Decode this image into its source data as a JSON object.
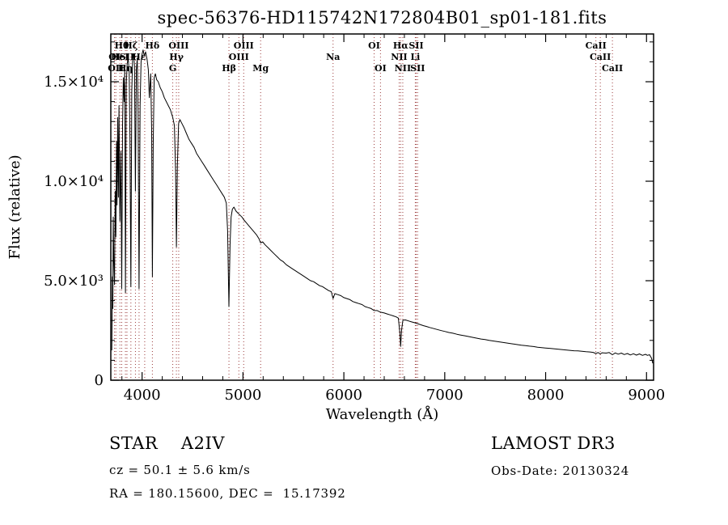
{
  "title": "spec-56376-HD115742N172804B01_sp01-181.fits",
  "footer": {
    "class_label": "STAR    A2IV",
    "cz": "cz = 50.1 ± 5.6 km/s",
    "ra_dec": "RA = 180.15600, DEC =  15.17392",
    "survey": "LAMOST DR3",
    "obs_date": "Obs-Date: 20130324"
  },
  "chart_data": {
    "type": "line",
    "title": "spec-56376-HD115742N172804B01_sp01-181.fits",
    "xlabel": "Wavelength (Å)",
    "ylabel": "Flux (relative)",
    "xlim": [
      3690,
      9070
    ],
    "ylim": [
      0,
      17400
    ],
    "xticks": [
      4000,
      5000,
      6000,
      7000,
      8000,
      9000
    ],
    "xtick_minor_step": 200,
    "yticks": [
      {
        "value": 0,
        "label": "0"
      },
      {
        "value": 5000,
        "label": "5.0×10³"
      },
      {
        "value": 10000,
        "label": "1.0×10⁴"
      },
      {
        "value": 15000,
        "label": "1.5×10⁴"
      }
    ],
    "ytick_minor_step": 1000,
    "grid": false,
    "legend": "none",
    "line_color": "#000000",
    "marker_color": "#9b3a3a",
    "spectral_lines": [
      {
        "wl": 3727,
        "label": "OI",
        "row": 2
      },
      {
        "wl": 3740,
        "label": "OII",
        "row": 3
      },
      {
        "wl": 3780,
        "label": "HeI",
        "row": 2
      },
      {
        "wl": 3798,
        "label": "Hθ",
        "row": 1
      },
      {
        "wl": 3835,
        "label": "Hη",
        "row": 3
      },
      {
        "wl": 3850,
        "label": "SII",
        "row": 2
      },
      {
        "wl": 3889,
        "label": "Hζ",
        "row": 1
      },
      {
        "wl": 3934,
        "label": "",
        "row": 1
      },
      {
        "wl": 3970,
        "label": "Hε",
        "row": 2
      },
      {
        "wl": 4026,
        "label": "",
        "row": 2
      },
      {
        "wl": 4102,
        "label": "Hδ",
        "row": 1
      },
      {
        "wl": 4304,
        "label": "G",
        "row": 3
      },
      {
        "wl": 4340,
        "label": "Hγ",
        "row": 2
      },
      {
        "wl": 4363,
        "label": "OIII",
        "row": 1
      },
      {
        "wl": 4861,
        "label": "Hβ",
        "row": 3
      },
      {
        "wl": 4959,
        "label": "OIII",
        "row": 2
      },
      {
        "wl": 5007,
        "label": "OIII",
        "row": 1
      },
      {
        "wl": 5175,
        "label": "Mg",
        "row": 3
      },
      {
        "wl": 5893,
        "label": "Na",
        "row": 2
      },
      {
        "wl": 6300,
        "label": "OI",
        "row": 1
      },
      {
        "wl": 6363,
        "label": "OI",
        "row": 3
      },
      {
        "wl": 6548,
        "label": "NII",
        "row": 2
      },
      {
        "wl": 6563,
        "label": "Hα",
        "row": 1
      },
      {
        "wl": 6584,
        "label": "NII",
        "row": 3
      },
      {
        "wl": 6708,
        "label": "Li",
        "row": 2
      },
      {
        "wl": 6717,
        "label": "SII",
        "row": 1
      },
      {
        "wl": 6731,
        "label": "SII",
        "row": 3
      },
      {
        "wl": 8498,
        "label": "CaII",
        "row": 1
      },
      {
        "wl": 8542,
        "label": "CaII",
        "row": 2
      },
      {
        "wl": 8662,
        "label": "CaII",
        "row": 3
      }
    ],
    "spectrum": [
      [
        3700,
        1500
      ],
      [
        3706,
        5200
      ],
      [
        3710,
        3600
      ],
      [
        3714,
        8200
      ],
      [
        3720,
        6000
      ],
      [
        3727,
        4800
      ],
      [
        3733,
        9500
      ],
      [
        3740,
        7200
      ],
      [
        3747,
        12000
      ],
      [
        3752,
        8800
      ],
      [
        3758,
        13200
      ],
      [
        3765,
        9200
      ],
      [
        3771,
        13800
      ],
      [
        3780,
        8000
      ],
      [
        3790,
        11500
      ],
      [
        3798,
        4600
      ],
      [
        3806,
        12800
      ],
      [
        3814,
        15200
      ],
      [
        3822,
        14000
      ],
      [
        3828,
        15600
      ],
      [
        3835,
        4400
      ],
      [
        3843,
        14800
      ],
      [
        3852,
        15900
      ],
      [
        3862,
        16200
      ],
      [
        3872,
        15500
      ],
      [
        3880,
        12000
      ],
      [
        3889,
        4700
      ],
      [
        3898,
        14500
      ],
      [
        3906,
        16100
      ],
      [
        3916,
        16400
      ],
      [
        3925,
        15800
      ],
      [
        3934,
        9500
      ],
      [
        3943,
        15600
      ],
      [
        3952,
        16200
      ],
      [
        3960,
        13500
      ],
      [
        3970,
        4600
      ],
      [
        3980,
        13800
      ],
      [
        3990,
        16000
      ],
      [
        4000,
        16400
      ],
      [
        4010,
        16600
      ],
      [
        4022,
        16300
      ],
      [
        4035,
        16500
      ],
      [
        4050,
        16100
      ],
      [
        4062,
        15600
      ],
      [
        4072,
        14200
      ],
      [
        4085,
        15400
      ],
      [
        4095,
        12500
      ],
      [
        4102,
        5200
      ],
      [
        4110,
        11800
      ],
      [
        4120,
        15200
      ],
      [
        4132,
        15400
      ],
      [
        4145,
        15100
      ],
      [
        4160,
        15000
      ],
      [
        4180,
        14700
      ],
      [
        4200,
        14500
      ],
      [
        4220,
        14200
      ],
      [
        4240,
        14000
      ],
      [
        4260,
        13800
      ],
      [
        4280,
        13600
      ],
      [
        4304,
        13200
      ],
      [
        4320,
        12800
      ],
      [
        4332,
        10500
      ],
      [
        4340,
        6700
      ],
      [
        4350,
        10800
      ],
      [
        4362,
        12900
      ],
      [
        4375,
        13100
      ],
      [
        4395,
        12900
      ],
      [
        4415,
        12700
      ],
      [
        4440,
        12400
      ],
      [
        4465,
        12100
      ],
      [
        4490,
        11900
      ],
      [
        4515,
        11700
      ],
      [
        4540,
        11400
      ],
      [
        4565,
        11200
      ],
      [
        4590,
        11000
      ],
      [
        4615,
        10800
      ],
      [
        4640,
        10600
      ],
      [
        4665,
        10400
      ],
      [
        4690,
        10200
      ],
      [
        4715,
        10000
      ],
      [
        4740,
        9800
      ],
      [
        4765,
        9600
      ],
      [
        4790,
        9400
      ],
      [
        4815,
        9200
      ],
      [
        4835,
        8900
      ],
      [
        4848,
        7500
      ],
      [
        4861,
        3700
      ],
      [
        4872,
        6800
      ],
      [
        4882,
        8200
      ],
      [
        4895,
        8600
      ],
      [
        4910,
        8700
      ],
      [
        4930,
        8500
      ],
      [
        4950,
        8400
      ],
      [
        4970,
        8300
      ],
      [
        4990,
        8200
      ],
      [
        5010,
        8050
      ],
      [
        5035,
        7900
      ],
      [
        5060,
        7750
      ],
      [
        5085,
        7600
      ],
      [
        5110,
        7450
      ],
      [
        5135,
        7300
      ],
      [
        5160,
        7100
      ],
      [
        5175,
        6900
      ],
      [
        5195,
        6950
      ],
      [
        5220,
        6800
      ],
      [
        5250,
        6650
      ],
      [
        5280,
        6500
      ],
      [
        5310,
        6350
      ],
      [
        5340,
        6200
      ],
      [
        5370,
        6050
      ],
      [
        5400,
        5950
      ],
      [
        5430,
        5800
      ],
      [
        5460,
        5700
      ],
      [
        5490,
        5600
      ],
      [
        5520,
        5500
      ],
      [
        5550,
        5400
      ],
      [
        5580,
        5300
      ],
      [
        5610,
        5200
      ],
      [
        5640,
        5100
      ],
      [
        5670,
        5000
      ],
      [
        5700,
        4950
      ],
      [
        5730,
        4850
      ],
      [
        5760,
        4750
      ],
      [
        5790,
        4700
      ],
      [
        5820,
        4600
      ],
      [
        5850,
        4500
      ],
      [
        5875,
        4450
      ],
      [
        5893,
        4100
      ],
      [
        5910,
        4350
      ],
      [
        5940,
        4300
      ],
      [
        5970,
        4250
      ],
      [
        6000,
        4150
      ],
      [
        6030,
        4100
      ],
      [
        6060,
        4050
      ],
      [
        6090,
        3950
      ],
      [
        6120,
        3900
      ],
      [
        6150,
        3850
      ],
      [
        6180,
        3800
      ],
      [
        6210,
        3700
      ],
      [
        6240,
        3650
      ],
      [
        6270,
        3600
      ],
      [
        6300,
        3500
      ],
      [
        6330,
        3500
      ],
      [
        6363,
        3420
      ],
      [
        6400,
        3380
      ],
      [
        6430,
        3330
      ],
      [
        6460,
        3280
      ],
      [
        6490,
        3230
      ],
      [
        6520,
        3180
      ],
      [
        6540,
        3120
      ],
      [
        6555,
        2400
      ],
      [
        6563,
        1700
      ],
      [
        6572,
        2500
      ],
      [
        6585,
        3020
      ],
      [
        6610,
        3030
      ],
      [
        6640,
        2980
      ],
      [
        6670,
        2930
      ],
      [
        6700,
        2890
      ],
      [
        6730,
        2840
      ],
      [
        6760,
        2790
      ],
      [
        6790,
        2740
      ],
      [
        6820,
        2700
      ],
      [
        6850,
        2650
      ],
      [
        6880,
        2610
      ],
      [
        6910,
        2570
      ],
      [
        6940,
        2530
      ],
      [
        6970,
        2490
      ],
      [
        7000,
        2450
      ],
      [
        7040,
        2400
      ],
      [
        7080,
        2360
      ],
      [
        7120,
        2310
      ],
      [
        7160,
        2270
      ],
      [
        7200,
        2230
      ],
      [
        7240,
        2190
      ],
      [
        7280,
        2150
      ],
      [
        7320,
        2110
      ],
      [
        7360,
        2070
      ],
      [
        7400,
        2040
      ],
      [
        7440,
        2000
      ],
      [
        7480,
        1970
      ],
      [
        7520,
        1940
      ],
      [
        7560,
        1910
      ],
      [
        7600,
        1880
      ],
      [
        7640,
        1850
      ],
      [
        7680,
        1820
      ],
      [
        7720,
        1790
      ],
      [
        7760,
        1760
      ],
      [
        7800,
        1740
      ],
      [
        7840,
        1710
      ],
      [
        7880,
        1690
      ],
      [
        7920,
        1660
      ],
      [
        7960,
        1640
      ],
      [
        8000,
        1620
      ],
      [
        8040,
        1600
      ],
      [
        8080,
        1580
      ],
      [
        8120,
        1560
      ],
      [
        8160,
        1540
      ],
      [
        8200,
        1520
      ],
      [
        8240,
        1500
      ],
      [
        8280,
        1480
      ],
      [
        8320,
        1470
      ],
      [
        8360,
        1450
      ],
      [
        8400,
        1430
      ],
      [
        8440,
        1420
      ],
      [
        8470,
        1400
      ],
      [
        8498,
        1340
      ],
      [
        8520,
        1390
      ],
      [
        8542,
        1320
      ],
      [
        8560,
        1380
      ],
      [
        8600,
        1360
      ],
      [
        8630,
        1390
      ],
      [
        8662,
        1280
      ],
      [
        8690,
        1370
      ],
      [
        8720,
        1310
      ],
      [
        8750,
        1360
      ],
      [
        8780,
        1290
      ],
      [
        8810,
        1340
      ],
      [
        8840,
        1270
      ],
      [
        8870,
        1330
      ],
      [
        8900,
        1260
      ],
      [
        8930,
        1320
      ],
      [
        8960,
        1250
      ],
      [
        8990,
        1300
      ],
      [
        9010,
        1250
      ],
      [
        9030,
        1280
      ],
      [
        9050,
        1100
      ],
      [
        9062,
        850
      ]
    ]
  }
}
